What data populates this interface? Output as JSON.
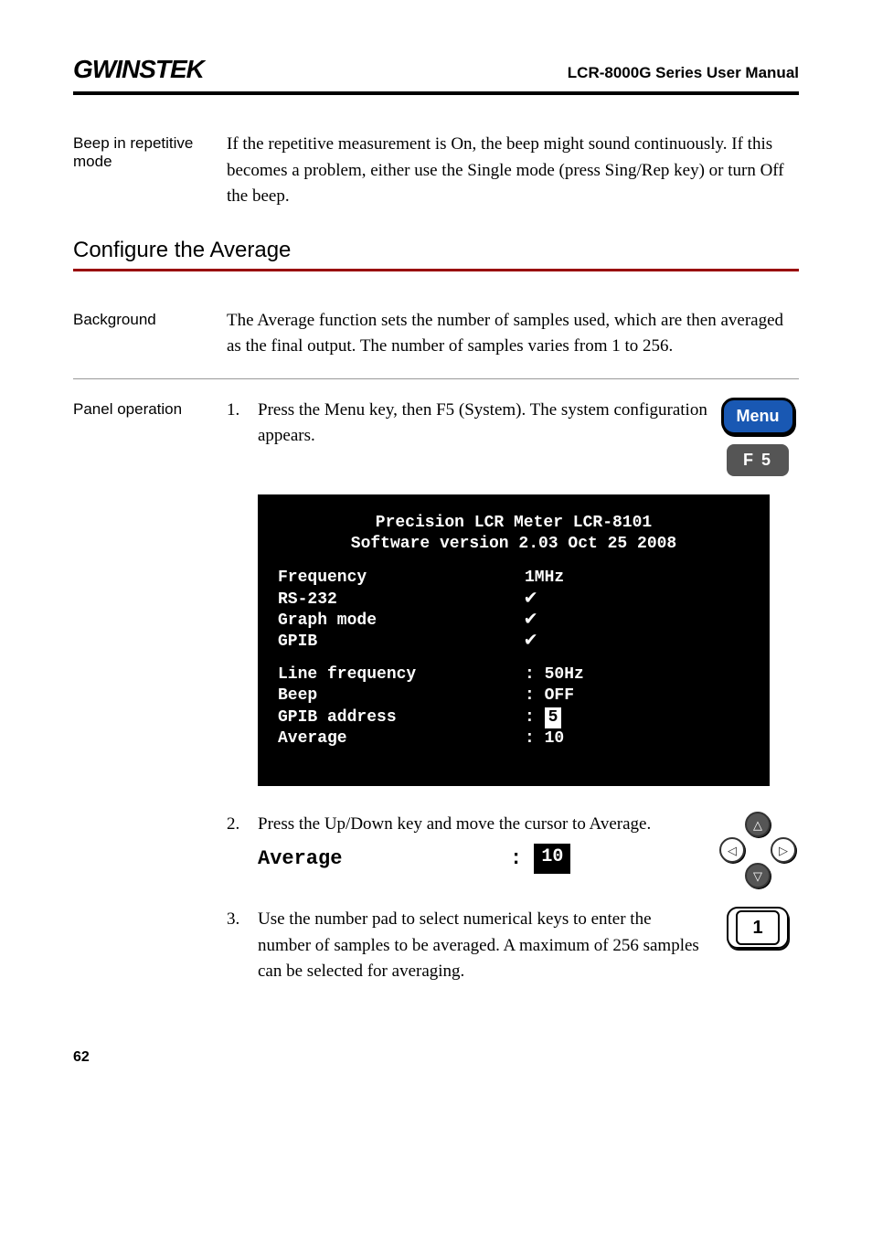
{
  "header": {
    "logo": "GWINSTEK",
    "manual_title": "LCR-8000G Series User Manual"
  },
  "beep_section": {
    "label": "Beep in repetitive mode",
    "text": "If the repetitive measurement is On, the beep might sound continuously. If this becomes a problem, either use the Single mode (press Sing/Rep key) or turn Off the beep."
  },
  "average_section": {
    "heading": "Configure the Average",
    "background_label": "Background",
    "background_text": "The Average function sets the number of samples used, which are then averaged as the final output. The number of samples varies from 1 to 256.",
    "panel_label": "Panel operation",
    "steps": [
      {
        "num": "1.",
        "text": "Press the Menu key, then F5 (System). The system configuration appears.",
        "buttons": {
          "menu": "Menu",
          "f5": "F 5"
        }
      },
      {
        "num": "2.",
        "text": "Press the Up/Down key and move the cursor to Average.",
        "cursor_label": "Average",
        "cursor_sep": ":",
        "cursor_value": "10"
      },
      {
        "num": "3.",
        "text": "Use the number pad to select numerical keys to enter the number of samples to be averaged. A maximum of 256 samples can be selected for averaging.",
        "numkey": "1"
      }
    ],
    "lcd": {
      "title_line1": "Precision LCR Meter LCR-8101",
      "title_line2": "Software version 2.03 Oct 25 2008",
      "rows1": [
        {
          "label": "Frequency",
          "value": "1MHz"
        },
        {
          "label": "RS-232",
          "value": "check"
        },
        {
          "label": "Graph mode",
          "value": "check"
        },
        {
          "label": "GPIB",
          "value": "check"
        }
      ],
      "rows2": [
        {
          "label": "Line frequency",
          "sep": ":",
          "value": "50Hz",
          "highlight": false
        },
        {
          "label": "Beep",
          "sep": ":",
          "value": "OFF",
          "highlight": false
        },
        {
          "label": "GPIB address",
          "sep": ":",
          "value": "5",
          "highlight": true
        },
        {
          "label": "Average",
          "sep": ":",
          "value": "10",
          "highlight": false
        }
      ]
    }
  },
  "page_number": "62",
  "colors": {
    "hr_blue": "#990000",
    "menu_bg": "#1958b3",
    "f5_bg": "#555555",
    "lcd_bg": "#000000"
  }
}
